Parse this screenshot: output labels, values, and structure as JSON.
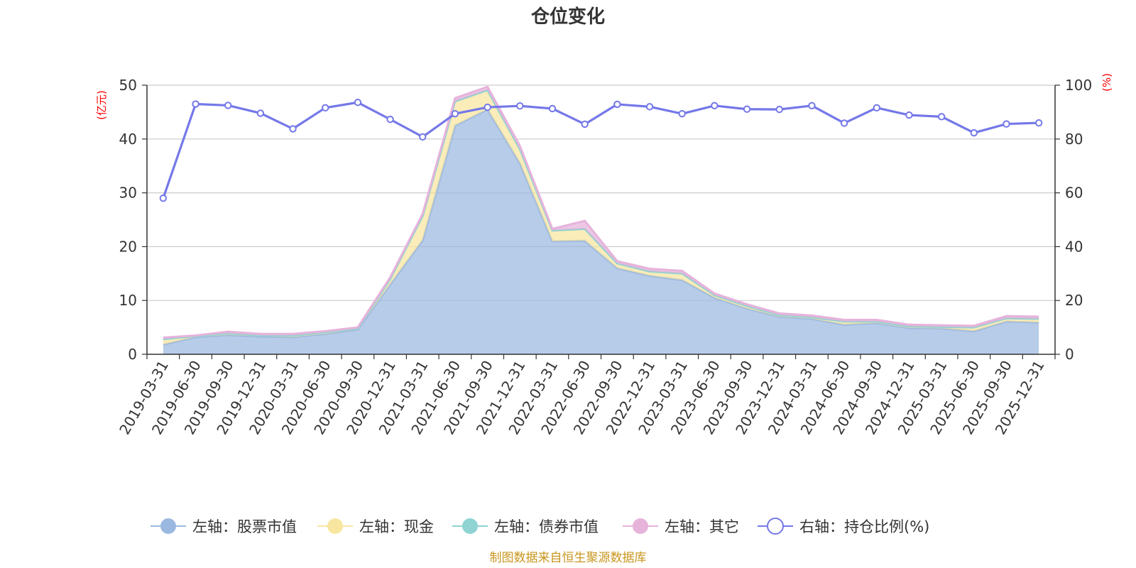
{
  "chart_data": {
    "type": "area",
    "title": "仓位变化",
    "left_axis": {
      "label": "(亿元)",
      "ylim": [
        0,
        50
      ],
      "ticks": [
        "0",
        "10",
        "20",
        "30",
        "40",
        "50"
      ]
    },
    "right_axis": {
      "label": "(%)",
      "ylim": [
        0,
        100
      ],
      "ticks": [
        "0",
        "20",
        "40",
        "60",
        "80",
        "100"
      ]
    },
    "categories": [
      "2019-03-31",
      "2019-06-30",
      "2019-09-30",
      "2019-12-31",
      "2020-03-31",
      "2020-06-30",
      "2020-09-30",
      "2020-12-31",
      "2021-03-31",
      "2021-06-30",
      "2021-09-30",
      "2021-12-31",
      "2022-03-31",
      "2022-06-30",
      "2022-09-30",
      "2022-12-31",
      "2023-03-31",
      "2023-06-30",
      "2023-09-30",
      "2023-12-31",
      "2024-03-31",
      "2024-06-30",
      "2024-09-30",
      "2024-12-31",
      "2025-03-31",
      "2025-06-30",
      "2025-09-30",
      "2025-12-31"
    ],
    "series": [
      {
        "name": "左轴：股票市值",
        "axis": "left",
        "stacked": true,
        "color": "#9bb8e0",
        "values": [
          1.8,
          3.2,
          3.6,
          3.3,
          3.2,
          3.8,
          4.6,
          13.0,
          21.2,
          42.5,
          45.5,
          35.5,
          21.0,
          21.1,
          16.0,
          14.6,
          13.8,
          10.5,
          8.5,
          7.0,
          6.6,
          5.5,
          5.8,
          4.9,
          4.8,
          4.3,
          6.1,
          5.9
        ]
      },
      {
        "name": "左轴：现金",
        "axis": "left",
        "stacked": true,
        "color": "#f8e6a0",
        "values": [
          1.0,
          0.2,
          0.3,
          0.2,
          0.3,
          0.3,
          0.2,
          1.0,
          4.5,
          4.5,
          3.6,
          2.6,
          2.0,
          2.2,
          0.9,
          0.8,
          1.2,
          0.5,
          0.5,
          0.3,
          0.3,
          0.6,
          0.3,
          0.3,
          0.3,
          0.7,
          0.6,
          0.7
        ]
      },
      {
        "name": "左轴：债券市值",
        "axis": "left",
        "stacked": true,
        "color": "#8fd3d3",
        "values": [
          0,
          0,
          0,
          0,
          0,
          0,
          0,
          0,
          0,
          0,
          0,
          0,
          0,
          0,
          0,
          0,
          0,
          0,
          0,
          0,
          0,
          0,
          0,
          0,
          0,
          0,
          0,
          0
        ]
      },
      {
        "name": "左轴：其它",
        "axis": "left",
        "stacked": true,
        "color": "#e6b3db",
        "values": [
          0.3,
          0.1,
          0.3,
          0.3,
          0.3,
          0.2,
          0.2,
          0.3,
          0.4,
          0.6,
          0.6,
          0.6,
          0.3,
          1.5,
          0.4,
          0.5,
          0.5,
          0.3,
          0.3,
          0.3,
          0.3,
          0.3,
          0.3,
          0.3,
          0.3,
          0.3,
          0.4,
          0.4
        ]
      },
      {
        "name": "右轴：持仓比例(%)",
        "axis": "right",
        "type": "line",
        "color": "#7478e8",
        "values": [
          58.0,
          93.0,
          92.5,
          89.6,
          83.8,
          91.6,
          93.6,
          87.3,
          80.8,
          89.4,
          91.8,
          92.3,
          91.3,
          85.5,
          92.9,
          92.0,
          89.4,
          92.4,
          91.1,
          91.0,
          92.4,
          85.9,
          91.6,
          88.9,
          88.3,
          82.3,
          85.6,
          86.0
        ]
      }
    ],
    "legend_position": "bottom-center",
    "grid": true
  },
  "source_note": "制图数据来自恒生聚源数据库",
  "colors": {
    "title": "#333333",
    "axis_label": "#ff0000",
    "tick_text": "#333333",
    "grid": "#cccccc",
    "source_note": "#c8961e"
  }
}
